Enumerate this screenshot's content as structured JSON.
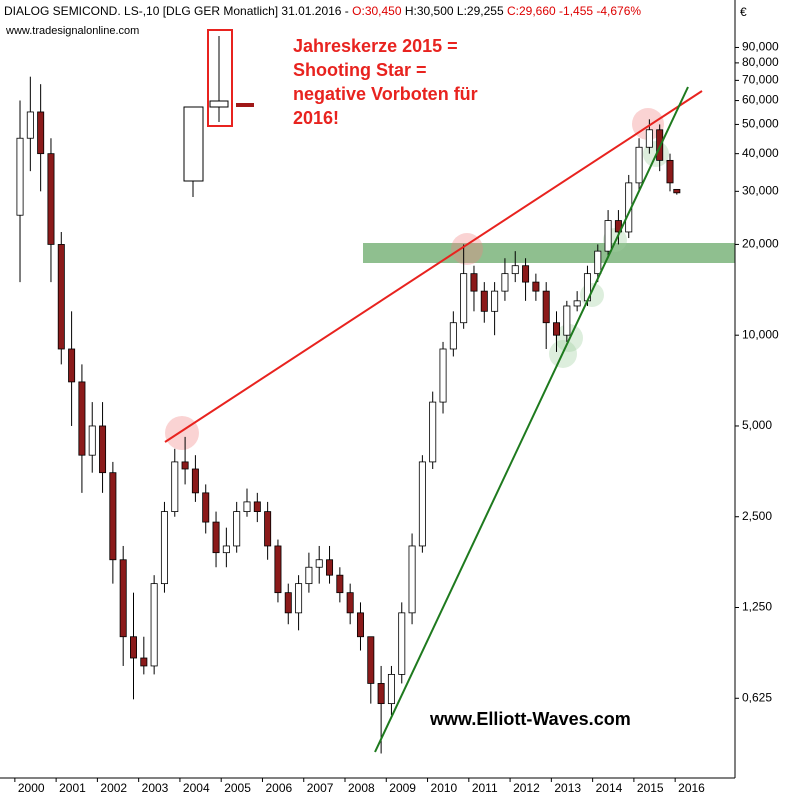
{
  "header": {
    "instrument": "DIALOG SEMICOND.  LS-,10 [DLG GER  Monatlich] 31.01.2016 -",
    "open": "O:30,450",
    "high": "H:30,500",
    "low": "L:29,255",
    "change": "C:29,660 -1,455 -4,676%",
    "source": "www.tradesignalonline.com",
    "currency": "€"
  },
  "annotation": [
    "Jahreskerze 2015 =",
    "Shooting Star =",
    "negative Vorboten für",
    "2016!"
  ],
  "footer": "www.Elliott-Waves.com",
  "chart_data": {
    "type": "candlestick",
    "log_scale": true,
    "up_color": "#ffffff",
    "down_color": "#8b1a1a",
    "xlim": [
      1999.64,
      2017.45
    ],
    "xticks": [
      2000,
      2001,
      2002,
      2003,
      2004,
      2005,
      2006,
      2007,
      2008,
      2009,
      2010,
      2011,
      2012,
      2013,
      2014,
      2015,
      2016
    ],
    "ylim": [
      0.34,
      111
    ],
    "yticks": [
      {
        "value": 0.625,
        "label": "0,625"
      },
      {
        "value": 1.25,
        "label": "1,250"
      },
      {
        "value": 2.5,
        "label": "2,500"
      },
      {
        "value": 5,
        "label": "5,000"
      },
      {
        "value": 10,
        "label": "10,000"
      },
      {
        "value": 20,
        "label": "20,000"
      },
      {
        "value": 30,
        "label": "30,000"
      },
      {
        "value": 40,
        "label": "40,000"
      },
      {
        "value": 50,
        "label": "50,000"
      },
      {
        "value": 60,
        "label": "60,000"
      },
      {
        "value": 70,
        "label": "70,000"
      },
      {
        "value": 80,
        "label": "80,000"
      },
      {
        "value": 90,
        "label": "90,000"
      }
    ],
    "x": [
      2000.125,
      2000.375,
      2000.625,
      2000.875,
      2001.125,
      2001.375,
      2001.625,
      2001.875,
      2002.125,
      2002.375,
      2002.625,
      2002.875,
      2003.125,
      2003.375,
      2003.625,
      2003.875,
      2004.125,
      2004.375,
      2004.625,
      2004.875,
      2005.125,
      2005.375,
      2005.625,
      2005.875,
      2006.125,
      2006.375,
      2006.625,
      2006.875,
      2007.125,
      2007.375,
      2007.625,
      2007.875,
      2008.125,
      2008.375,
      2008.625,
      2008.875,
      2009.125,
      2009.375,
      2009.625,
      2009.875,
      2010.125,
      2010.375,
      2010.625,
      2010.875,
      2011.125,
      2011.375,
      2011.625,
      2011.875,
      2012.125,
      2012.375,
      2012.625,
      2012.875,
      2013.125,
      2013.375,
      2013.625,
      2013.875,
      2014.125,
      2014.375,
      2014.625,
      2014.875,
      2015.125,
      2015.375,
      2015.625,
      2015.875,
      2016.04
    ],
    "open": [
      25,
      45,
      55,
      40,
      20,
      9,
      7,
      4,
      5,
      3.5,
      1.8,
      1.0,
      0.85,
      0.8,
      1.5,
      2.6,
      3.8,
      3.6,
      3.0,
      2.4,
      1.9,
      2.0,
      2.6,
      2.8,
      2.6,
      2.0,
      1.4,
      1.2,
      1.5,
      1.7,
      1.8,
      1.6,
      1.4,
      1.2,
      1.0,
      0.7,
      0.6,
      0.75,
      1.2,
      2.0,
      3.8,
      6.0,
      9.0,
      11,
      16,
      14,
      12,
      14,
      16,
      17,
      15,
      14,
      11,
      10,
      12.5,
      13,
      16,
      19,
      24,
      22,
      32,
      42,
      48,
      38,
      30.45
    ],
    "high": [
      60,
      72,
      68,
      45,
      22,
      12,
      8,
      6,
      6,
      3.8,
      2,
      1.4,
      1.0,
      1.6,
      2.8,
      4.2,
      4.6,
      4.0,
      3.2,
      2.6,
      2.3,
      2.8,
      3.1,
      3.0,
      2.8,
      2.1,
      1.5,
      1.6,
      1.9,
      2.0,
      2.0,
      1.7,
      1.5,
      1.3,
      1.0,
      0.8,
      0.8,
      1.3,
      2.2,
      4.0,
      6.5,
      9.5,
      12,
      20,
      17,
      15,
      15,
      18,
      19,
      18,
      16,
      15,
      12,
      13,
      14,
      17,
      20,
      26,
      26,
      34,
      45,
      52,
      50,
      40,
      30.5
    ],
    "low": [
      15,
      35,
      30,
      15,
      8,
      5,
      3,
      3.5,
      3,
      1.5,
      0.8,
      0.62,
      0.75,
      0.75,
      1.4,
      2.5,
      3.2,
      2.8,
      2.2,
      1.7,
      1.7,
      1.9,
      2.5,
      2.4,
      1.8,
      1.3,
      1.1,
      1.05,
      1.4,
      1.5,
      1.5,
      1.3,
      1.1,
      0.9,
      0.6,
      0.41,
      0.55,
      0.7,
      1.1,
      1.9,
      3.6,
      5.5,
      8.5,
      10.5,
      12,
      11,
      10,
      13,
      15,
      13,
      13,
      9,
      8.8,
      9.5,
      12,
      12.5,
      15,
      18,
      20,
      21,
      30,
      40,
      35,
      30,
      29.255
    ],
    "close": [
      45,
      55,
      40,
      20,
      9,
      7,
      4,
      5,
      3.5,
      1.8,
      1.0,
      0.85,
      0.8,
      1.5,
      2.6,
      3.8,
      3.6,
      3.0,
      2.4,
      1.9,
      2.0,
      2.6,
      2.8,
      2.6,
      2.0,
      1.4,
      1.2,
      1.5,
      1.7,
      1.8,
      1.6,
      1.4,
      1.2,
      1.0,
      0.7,
      0.6,
      0.75,
      1.2,
      2.0,
      3.8,
      6.0,
      9.0,
      11,
      16,
      14,
      12,
      14,
      16,
      17,
      15,
      14,
      11,
      10,
      12.5,
      13,
      16,
      19,
      24,
      22,
      32,
      42,
      48,
      38,
      32,
      29.66
    ]
  }
}
